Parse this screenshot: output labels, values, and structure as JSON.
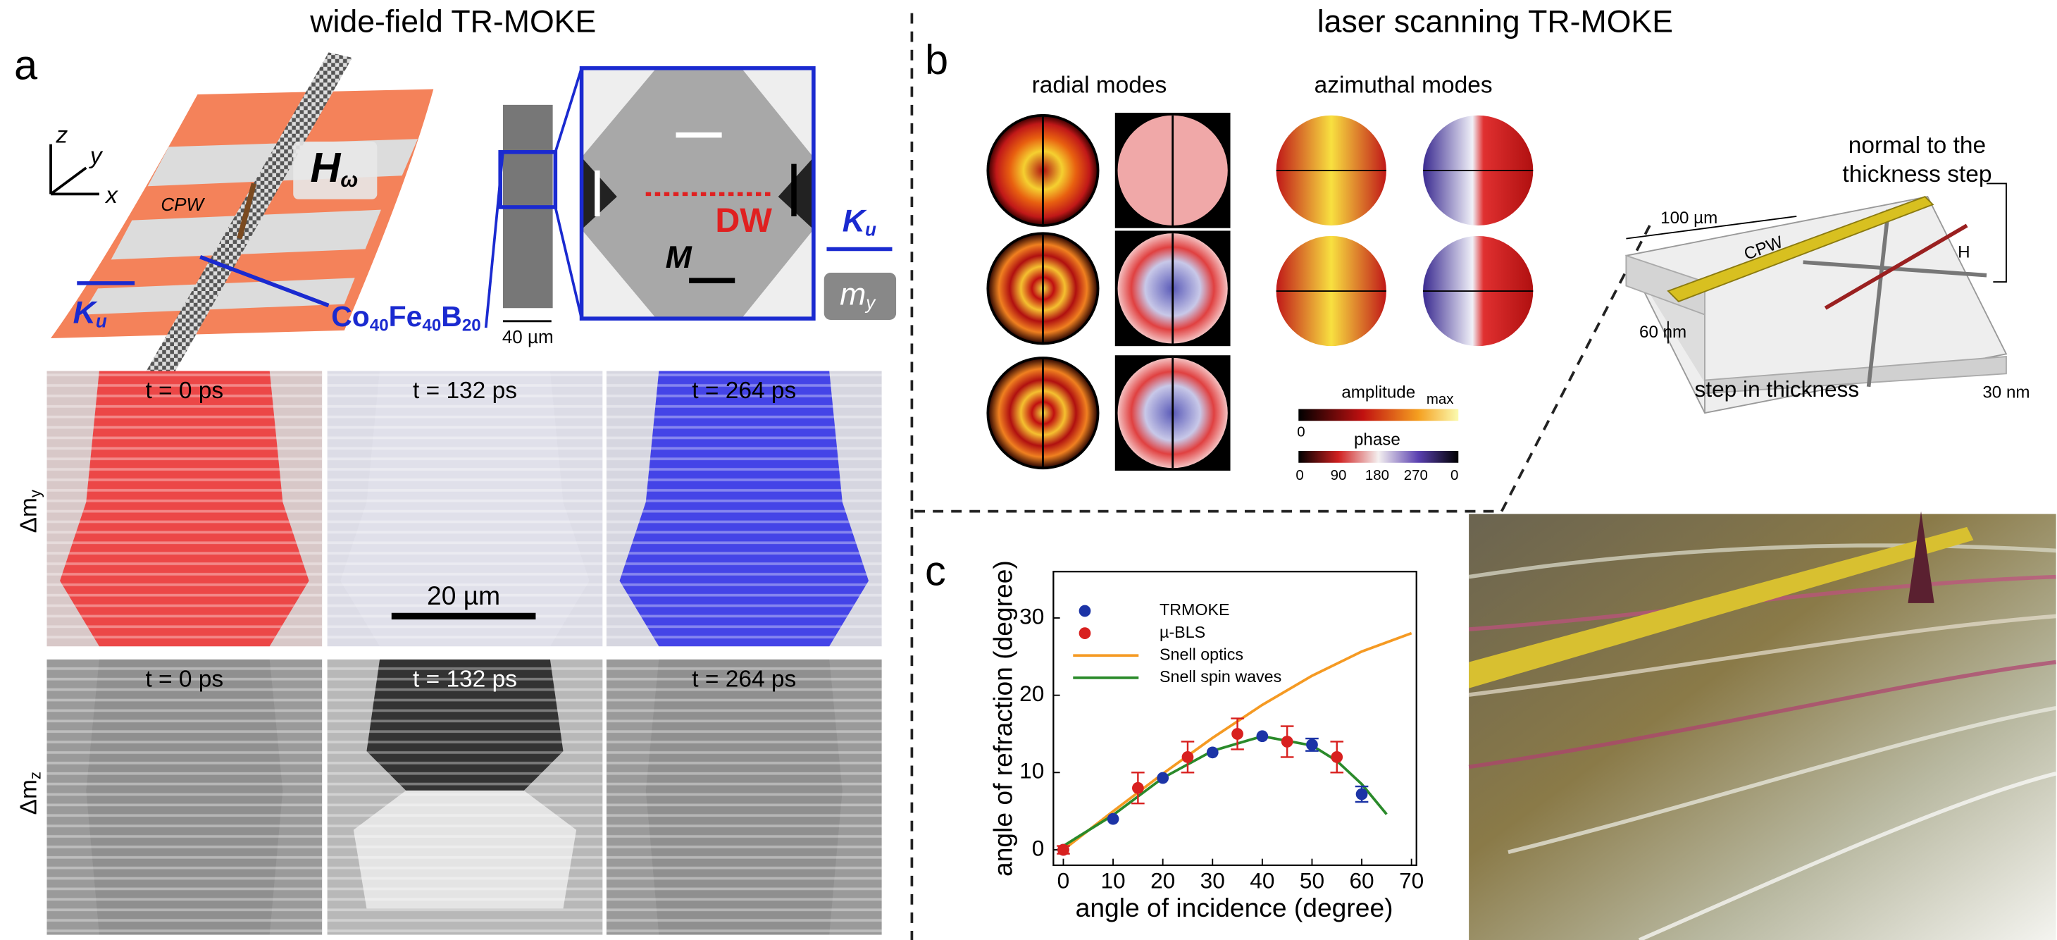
{
  "titles": {
    "left": "wide-field TR-MOKE",
    "right": "laser scanning TR-MOKE"
  },
  "panels": {
    "a": "a",
    "b": "b",
    "c": "c"
  },
  "panel_a": {
    "axes": [
      "z",
      "y",
      "x"
    ],
    "cpw": "CPW",
    "field": {
      "main": "H",
      "sub": "ω"
    },
    "anisotropy": {
      "main": "K",
      "sub": "u"
    },
    "material": [
      "Co",
      "40",
      "Fe",
      "40",
      "B",
      "20"
    ],
    "width": "40 µm",
    "dw": "DW",
    "m": "M",
    "my": {
      "main": "m",
      "sub": "y"
    },
    "times": [
      "t = 0 ps",
      "t = 132 ps",
      "t = 264 ps"
    ],
    "scale": "20 µm",
    "rows": [
      {
        "main": "Δm",
        "sub": "y"
      },
      {
        "main": "Δm",
        "sub": "z"
      }
    ]
  },
  "panel_b": {
    "radial": "radial modes",
    "azimuthal": "azimuthal modes",
    "amplitude": {
      "label": "amplitude",
      "min": "0",
      "max": "max"
    },
    "phase": {
      "label": "phase",
      "ticks": [
        "0",
        "90",
        "180",
        "270",
        "0"
      ]
    },
    "schematic": {
      "normal": [
        "normal to the",
        "thickness step"
      ],
      "length": "100 µm",
      "cpw": "CPW",
      "field": "H",
      "thick": "60 nm",
      "step": "step in thickness",
      "thin": "30 nm"
    }
  },
  "chart_data": {
    "type": "scatter",
    "xlabel": "angle of incidence (degree)",
    "ylabel": "angle of refraction (degree)",
    "xlim": [
      -2,
      71
    ],
    "ylim": [
      -2,
      36
    ],
    "xticks": [
      0,
      10,
      20,
      30,
      40,
      50,
      60,
      70
    ],
    "yticks": [
      0,
      10,
      20,
      30
    ],
    "series": [
      {
        "name": "TRMOKE",
        "color": "#1c34a6",
        "mode": "markers",
        "x": [
          0,
          10,
          20,
          30,
          40,
          50,
          60
        ],
        "values": [
          0,
          4,
          9.3,
          12.6,
          14.7,
          13.6,
          7.2
        ],
        "errors": [
          null,
          null,
          null,
          null,
          null,
          0.8,
          1
        ]
      },
      {
        "name": "µ-BLS",
        "color": "#d8201f",
        "mode": "markers",
        "x": [
          0,
          15,
          25,
          35,
          45,
          55
        ],
        "values": [
          0,
          8,
          12,
          15,
          14,
          12
        ],
        "errors": [
          0.5,
          2,
          2,
          2,
          2,
          2
        ]
      },
      {
        "name": "Snell optics",
        "color": "#f59a23",
        "mode": "line",
        "x": [
          0,
          10,
          20,
          30,
          40,
          50,
          60,
          70
        ],
        "values": [
          0,
          4.98,
          9.85,
          14.48,
          18.75,
          22.52,
          25.66,
          28.03
        ]
      },
      {
        "name": "Snell spin waves",
        "color": "#2a8a2a",
        "mode": "line",
        "x": [
          0,
          10,
          20,
          30,
          40,
          50,
          55,
          60,
          65
        ],
        "values": [
          0.5,
          4.5,
          9.3,
          12.8,
          14.7,
          13.5,
          11.5,
          8.5,
          4.6
        ]
      }
    ]
  }
}
